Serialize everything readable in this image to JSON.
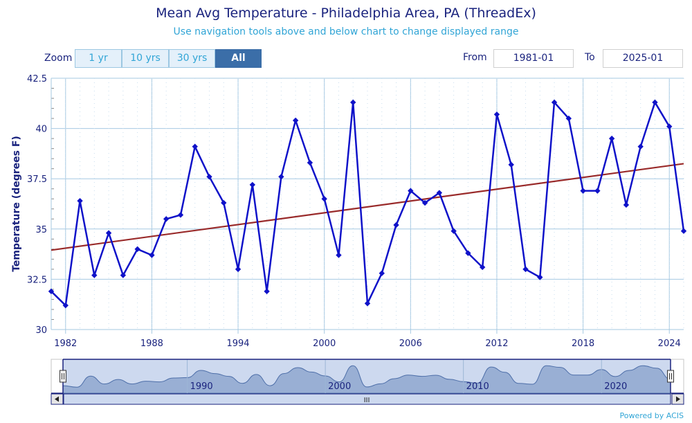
{
  "header": {
    "title": "Mean Avg Temperature - Philadelphia Area, PA (ThreadEx)",
    "subtitle": "Use navigation tools above and below chart to change displayed range"
  },
  "toolbar": {
    "zoom_label": "Zoom",
    "buttons": [
      "1 yr",
      "10 yrs",
      "30 yrs",
      "All"
    ],
    "active_button": "All",
    "from_label": "From",
    "from_value": "1981-01",
    "to_label": "To",
    "to_value": "2025-01"
  },
  "credits": "Powered by ACIS",
  "navigator": {
    "tick_labels": [
      "1990",
      "2000",
      "2010",
      "2020"
    ],
    "scroll_label": "III"
  },
  "colors": {
    "series": "#0f12c9",
    "trend": "#992a2a",
    "grid": "#a6c9e2",
    "text": "#1a237e",
    "navigator_fill": "#8fa7cf"
  },
  "chart_data": {
    "type": "line",
    "title": "Mean Avg Temperature - Philadelphia Area, PA (ThreadEx)",
    "subtitle": "Use navigation tools above and below chart to change displayed range",
    "xlabel": "",
    "ylabel": "Temperature (degrees F)",
    "xlim": [
      1981,
      2025
    ],
    "ylim": [
      30,
      42.5
    ],
    "x_ticks": [
      "1982",
      "1988",
      "1994",
      "2000",
      "2006",
      "2012",
      "2018",
      "2024"
    ],
    "y_ticks": [
      "30",
      "32.5",
      "35",
      "37.5",
      "40",
      "42.5"
    ],
    "grid": true,
    "series": [
      {
        "x": [
          1981,
          1982,
          1983,
          1984,
          1985,
          1986,
          1987,
          1988,
          1989,
          1990,
          1991,
          1992,
          1993,
          1994,
          1995,
          1996,
          1997,
          1998,
          1999,
          2000,
          2001,
          2002,
          2003,
          2004,
          2005,
          2006,
          2007,
          2008,
          2009,
          2010,
          2011,
          2012,
          2013,
          2014,
          2015,
          2016,
          2017,
          2018,
          2019,
          2020,
          2021,
          2022,
          2023,
          2024,
          2025
        ],
        "values": [
          31.9,
          31.2,
          36.4,
          32.7,
          34.8,
          32.7,
          34.0,
          33.7,
          35.5,
          35.7,
          39.1,
          37.6,
          36.3,
          33.0,
          37.2,
          31.9,
          37.6,
          40.4,
          38.3,
          36.5,
          33.7,
          41.3,
          31.3,
          32.8,
          35.2,
          36.9,
          36.3,
          36.8,
          34.9,
          33.8,
          33.1,
          40.7,
          38.2,
          33.0,
          32.6,
          41.3,
          40.5,
          36.9,
          36.9,
          39.5,
          36.2,
          39.1,
          41.3,
          40.1,
          34.9
        ]
      },
      {
        "type": "trend",
        "x": [
          1981,
          2025
        ],
        "values": [
          33.95,
          38.25
        ]
      }
    ]
  }
}
